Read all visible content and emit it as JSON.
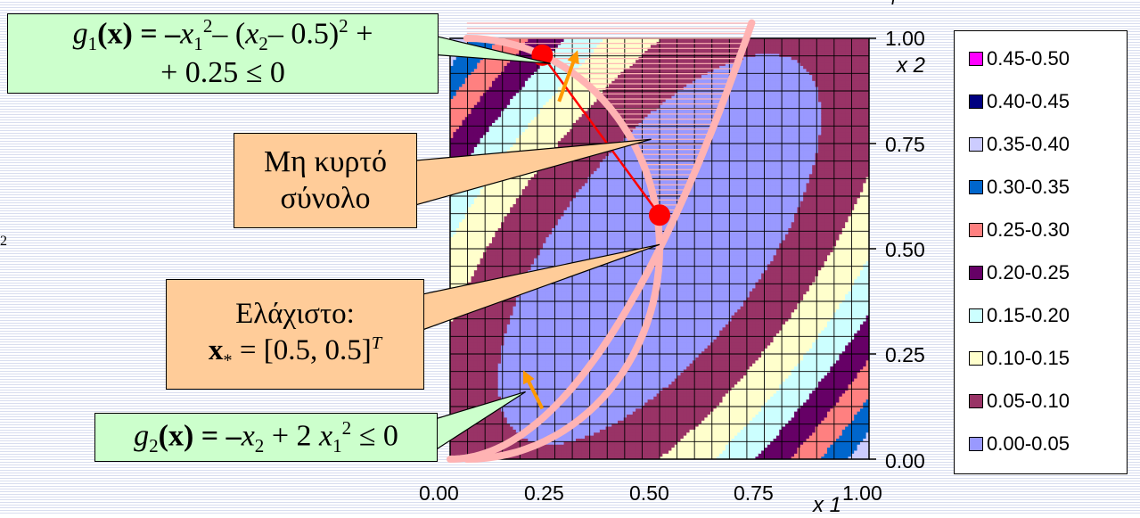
{
  "chart_data": {
    "type": "heatmap",
    "subtype": "filled-contour",
    "xlabel": "x 1",
    "ylabel": "x 2",
    "x_ticks": [
      "0.00",
      "0.25",
      "0.50",
      "0.75",
      "1.00"
    ],
    "y_ticks": [
      "1.00",
      "0.75",
      "0.50",
      "0.25",
      "0.00"
    ],
    "xlim": [
      0,
      1
    ],
    "ylim": [
      0,
      1
    ],
    "grid": true,
    "legend_position": "right",
    "legend": [
      {
        "label": "0.45-0.50",
        "color": "#ff00ff"
      },
      {
        "label": "0.40-0.45",
        "color": "#000080"
      },
      {
        "label": "0.35-0.40",
        "color": "#ccccff"
      },
      {
        "label": "0.30-0.35",
        "color": "#0066cc"
      },
      {
        "label": "0.25-0.30",
        "color": "#ff8080"
      },
      {
        "label": "0.20-0.25",
        "color": "#660066"
      },
      {
        "label": "0.15-0.20",
        "color": "#ccffff"
      },
      {
        "label": "0.10-0.15",
        "color": "#ffffcc"
      },
      {
        "label": "0.05-0.10",
        "color": "#993366"
      },
      {
        "label": "0.00-0.05",
        "color": "#9999ff"
      }
    ],
    "band_edges": [
      0,
      0.05,
      0.1,
      0.15,
      0.2,
      0.25,
      0.3,
      0.35,
      0.4,
      0.45,
      0.5
    ],
    "minimum_point": [
      0.5,
      0.5
    ],
    "segment_points": [
      [
        0.22,
        0.96
      ],
      [
        0.5,
        0.58
      ]
    ]
  },
  "annotations": {
    "g1_line1": {
      "fn": "g",
      "sub": "1",
      "open": "(",
      "x": "x",
      "close": ") = –",
      "v1": "x",
      "v1sub": "1",
      "v1sup": "2",
      "rest": "– (",
      "v2": "x",
      "v2sub": "2",
      "tail": "– 0.5)",
      "tailsup": "2",
      "end": " +"
    },
    "g1_line2": "+ 0.25 ≤ 0",
    "nonconvex_line1": "Μη κυρτό",
    "nonconvex_line2": "σύνολο",
    "minimum_line1": "Ελάχιστο:",
    "minimum_x": "x",
    "minimum_star": "*",
    "minimum_value": " = [0.5, 0.5]",
    "minimum_T": "T",
    "g2": {
      "fn": "g",
      "sub": "2",
      "open": "(",
      "x": "x",
      "close": ") = –",
      "v": "x",
      "vsub": "2",
      "mid": " + 2 ",
      "v1": "x",
      "v1sub": "1",
      "v1sup": "2",
      "end": " ≤ 0"
    }
  },
  "colors": {
    "callout_green": "#ccffcc",
    "callout_orange": "#ffcc99",
    "constraint_curve": "#ffb3b3",
    "segment_red": "#ff0000",
    "arrow_orange": "#ff9900"
  },
  "edge_fragments": {
    "right_top": "r",
    "left_mid": "2"
  }
}
